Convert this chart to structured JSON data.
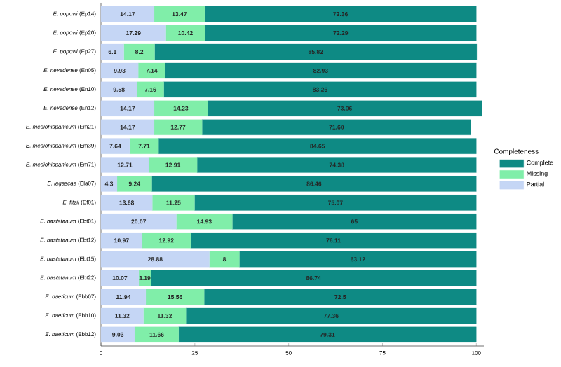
{
  "chart_data": {
    "type": "bar",
    "orientation": "horizontal",
    "stacked": true,
    "categories": [
      "*E. popovii* (Ep14)",
      "*E. popovii* (Ep20)",
      "*E. popovii* (Ep27)",
      "*E. nevadense* (En05)",
      "*E. nevadense* (En10)",
      "*E. nevadense* (En12)",
      "*E. mediohispanicum* (Em21)",
      "*E. mediohispanicum* (Em39)",
      "*E. mediohispanicum* (Em71)",
      "*E. lagascae* (Ela07)",
      "*E. fitzii* (Ef01)",
      "*E. bastetanum* (Ebt01)",
      "*E. bastetanum* (Ebt12)",
      "*E. bastetanum* (Ebt15)",
      "*E. bastetanum* (Ebt22)",
      "*E. baeticum* (Ebb07)",
      "*E. baeticum* (Ebb10)",
      "*E. baeticum* (Ebb12)"
    ],
    "series": [
      {
        "name": "Partial",
        "color": "#c5d6f5",
        "values": [
          14.17,
          17.29,
          6.1,
          9.93,
          9.58,
          14.17,
          14.17,
          7.64,
          12.71,
          4.3,
          13.68,
          20.07,
          10.97,
          28.88,
          10.07,
          11.94,
          11.32,
          9.03
        ],
        "value_labels": [
          "14.17",
          "17.29",
          "6.1",
          "9.93",
          "9.58",
          "14.17",
          "14.17",
          "7.64",
          "12.71",
          "4.3",
          "13.68",
          "20.07",
          "10.97",
          "28.88",
          "10.07",
          "11.94",
          "11.32",
          "9.03"
        ]
      },
      {
        "name": "Missing",
        "color": "#80eea9",
        "values": [
          13.47,
          10.42,
          8.2,
          7.14,
          7.16,
          14.23,
          12.77,
          7.71,
          12.91,
          9.24,
          11.25,
          14.93,
          12.92,
          8,
          3.19,
          15.56,
          11.32,
          11.66
        ],
        "value_labels": [
          "13.47",
          "10.42",
          "8.2",
          "7.14",
          "7.16",
          "14.23",
          "12.77",
          "7.71",
          "12.91",
          "9.24",
          "11.25",
          "14.93",
          "12.92",
          "8",
          "3.19",
          "15.56",
          "11.32",
          "11.66"
        ]
      },
      {
        "name": "Complete",
        "color": "#0e8a84",
        "values": [
          72.36,
          72.29,
          85.82,
          82.93,
          83.26,
          73.06,
          71.6,
          84.65,
          74.38,
          86.46,
          75.07,
          65,
          76.11,
          63.12,
          86.74,
          72.5,
          77.36,
          79.31
        ],
        "value_labels": [
          "72.36",
          "72.29",
          "85.82",
          "82.93",
          "83.26",
          "73.06",
          "71.60",
          "84.65",
          "74.38",
          "86.46",
          "75.07",
          "65",
          "76.11",
          "63.12",
          "86.74",
          "72.5",
          "77.36",
          "79.31"
        ]
      }
    ],
    "xlim": [
      0,
      102
    ],
    "xticks": [
      0,
      25,
      50,
      75,
      100
    ],
    "legend_title": "Completeness",
    "legend": "right",
    "grid": false
  }
}
